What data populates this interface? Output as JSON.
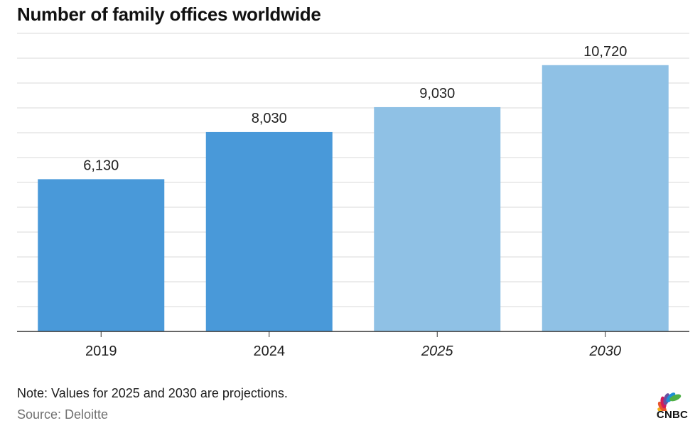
{
  "title": "Number of family offices worldwide",
  "note": "Note: Values for 2025 and 2030 are projections.",
  "source": "Source: Deloitte",
  "logo": {
    "text": "CNBC",
    "icon": "peacock-icon"
  },
  "colors": {
    "actual": "#4999d9",
    "projection": "#8fc1e5",
    "grid": "#d9d9d9",
    "axis": "#333333",
    "text": "#222222"
  },
  "chart_data": {
    "type": "bar",
    "title": "Number of family offices worldwide",
    "xlabel": "",
    "ylabel": "",
    "categories": [
      "2019",
      "2024",
      "2025",
      "2030"
    ],
    "values": [
      6130,
      8030,
      9030,
      10720
    ],
    "data_labels": [
      "6,130",
      "8,030",
      "9,030",
      "10,720"
    ],
    "projected": [
      false,
      false,
      true,
      true
    ],
    "ylim": [
      0,
      12000
    ],
    "grid": true
  }
}
